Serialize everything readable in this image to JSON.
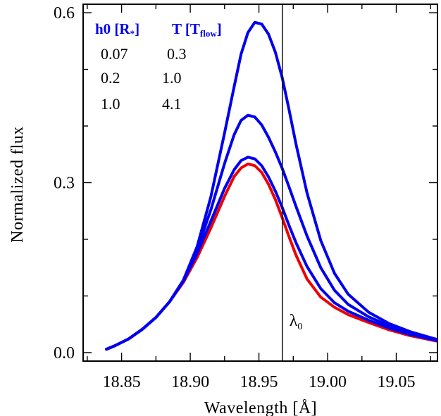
{
  "chart_data": {
    "type": "line",
    "xlabel": "Wavelength [Å]",
    "ylabel": "Normalized flux",
    "xlim": [
      18.822,
      19.08
    ],
    "ylim": [
      -0.015,
      0.615
    ],
    "x_ticks": [
      "18.85",
      "18.90",
      "18.95",
      "19.00",
      "19.05"
    ],
    "x_tick_values": [
      18.85,
      18.9,
      18.95,
      19.0,
      19.05
    ],
    "y_ticks": [
      "0.0",
      "0.3",
      "0.6"
    ],
    "y_tick_values": [
      0.0,
      0.3,
      0.6
    ],
    "annotation": {
      "label": "λ",
      "subscript": "0",
      "x": 18.967
    },
    "legend": {
      "header": [
        {
          "main": "h0 [R",
          "sub": "*",
          "close": "]"
        },
        {
          "main": "T [T",
          "sub": "flow",
          "close": "]"
        }
      ],
      "rows": [
        [
          "0.07",
          "0.3"
        ],
        [
          "0.2",
          "1.0"
        ],
        [
          "1.0",
          "4.1"
        ]
      ]
    },
    "colors": {
      "blue": "#0000ee",
      "red": "#ee0000",
      "axis": "#000000"
    },
    "series": [
      {
        "color": "#ee0000",
        "x": [
          18.839,
          18.845,
          18.855,
          18.865,
          18.875,
          18.885,
          18.895,
          18.905,
          18.915,
          18.925,
          18.932,
          18.937,
          18.942,
          18.947,
          18.952,
          18.957,
          18.962,
          18.967,
          18.972,
          18.977,
          18.985,
          18.995,
          19.005,
          19.015,
          19.03,
          19.045,
          19.06,
          19.08
        ],
        "y": [
          0.006,
          0.012,
          0.024,
          0.041,
          0.062,
          0.09,
          0.124,
          0.168,
          0.22,
          0.276,
          0.311,
          0.326,
          0.333,
          0.33,
          0.318,
          0.297,
          0.27,
          0.238,
          0.204,
          0.172,
          0.13,
          0.098,
          0.08,
          0.067,
          0.053,
          0.04,
          0.03,
          0.02
        ]
      },
      {
        "color": "#0000ee",
        "x": [
          18.839,
          18.845,
          18.855,
          18.865,
          18.875,
          18.885,
          18.895,
          18.905,
          18.915,
          18.925,
          18.932,
          18.937,
          18.942,
          18.947,
          18.952,
          18.957,
          18.962,
          18.967,
          18.972,
          18.977,
          18.985,
          18.995,
          19.005,
          19.015,
          19.03,
          19.045,
          19.06,
          19.08
        ],
        "y": [
          0.006,
          0.012,
          0.024,
          0.041,
          0.062,
          0.09,
          0.126,
          0.175,
          0.232,
          0.29,
          0.323,
          0.339,
          0.345,
          0.342,
          0.33,
          0.31,
          0.285,
          0.256,
          0.224,
          0.194,
          0.152,
          0.113,
          0.088,
          0.073,
          0.057,
          0.043,
          0.032,
          0.021
        ]
      },
      {
        "color": "#0000ee",
        "x": [
          18.839,
          18.845,
          18.855,
          18.865,
          18.875,
          18.885,
          18.895,
          18.905,
          18.915,
          18.925,
          18.932,
          18.937,
          18.942,
          18.947,
          18.952,
          18.957,
          18.962,
          18.967,
          18.972,
          18.977,
          18.985,
          18.995,
          19.005,
          19.015,
          19.03,
          19.045,
          19.06,
          19.08
        ],
        "y": [
          0.006,
          0.012,
          0.024,
          0.041,
          0.062,
          0.09,
          0.127,
          0.182,
          0.252,
          0.334,
          0.385,
          0.41,
          0.419,
          0.416,
          0.402,
          0.38,
          0.354,
          0.325,
          0.292,
          0.258,
          0.206,
          0.15,
          0.11,
          0.085,
          0.063,
          0.047,
          0.035,
          0.022
        ]
      },
      {
        "color": "#0000ee",
        "x": [
          18.839,
          18.845,
          18.855,
          18.865,
          18.875,
          18.885,
          18.895,
          18.905,
          18.915,
          18.925,
          18.932,
          18.937,
          18.942,
          18.947,
          18.952,
          18.957,
          18.962,
          18.967,
          18.972,
          18.977,
          18.985,
          18.995,
          19.005,
          19.015,
          19.03,
          19.045,
          19.06,
          19.08
        ],
        "y": [
          0.006,
          0.012,
          0.024,
          0.041,
          0.062,
          0.09,
          0.128,
          0.187,
          0.275,
          0.388,
          0.47,
          0.527,
          0.565,
          0.583,
          0.58,
          0.562,
          0.53,
          0.485,
          0.428,
          0.368,
          0.282,
          0.198,
          0.14,
          0.103,
          0.071,
          0.051,
          0.037,
          0.023
        ]
      }
    ]
  }
}
